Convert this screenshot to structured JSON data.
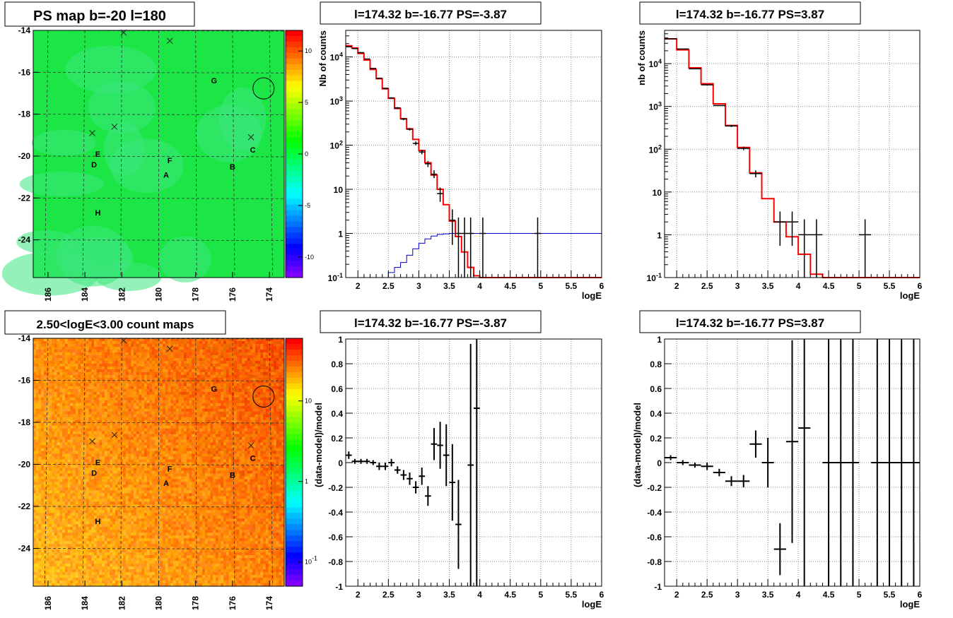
{
  "chart_data": [
    {
      "type": "heatmap",
      "title": "PS map b=-20 l=180",
      "x_range": [
        186.8,
        173.2
      ],
      "y_range": [
        -25.8,
        -14.0
      ],
      "x_ticks": [
        "186",
        "184",
        "182",
        "180",
        "178",
        "176",
        "174"
      ],
      "y_ticks": [
        "-14",
        "-16",
        "-18",
        "-20",
        "-22",
        "-24"
      ],
      "colorbar": {
        "scale": "linear",
        "min": -12,
        "max": 12,
        "ticks": [
          "10",
          "5",
          "0",
          "-5",
          "-10"
        ]
      },
      "colors": {
        "background": "#1be646",
        "patch": "#3ce87e"
      },
      "sources": [
        {
          "label": "A",
          "l": 179.6,
          "b": -20.9
        },
        {
          "label": "B",
          "l": 176.0,
          "b": -20.5
        },
        {
          "label": "C",
          "l": 174.9,
          "b": -19.7
        },
        {
          "label": "D",
          "l": 183.5,
          "b": -20.4
        },
        {
          "label": "E",
          "l": 183.3,
          "b": -19.9
        },
        {
          "label": "F",
          "l": 179.4,
          "b": -20.2
        },
        {
          "label": "G",
          "l": 177.0,
          "b": -16.4
        },
        {
          "label": "H",
          "l": 183.3,
          "b": -22.7
        }
      ],
      "crosses": [
        {
          "l": 181.9,
          "b": -14.1
        },
        {
          "l": 179.4,
          "b": -14.5
        },
        {
          "l": 183.6,
          "b": -18.9
        },
        {
          "l": 182.4,
          "b": -18.6
        },
        {
          "l": 175.0,
          "b": -19.1
        }
      ],
      "circle": {
        "l": 174.32,
        "b": -16.77
      }
    },
    {
      "type": "histogram",
      "title": "l=174.32 b=-16.77 PS=-3.87",
      "xlabel": "logE",
      "ylabel": "Nb of counts",
      "xlim": [
        1.8,
        6.0
      ],
      "ylim": [
        0.1,
        40000
      ],
      "yscale": "log",
      "x_ticks": [
        "2",
        "2.5",
        "3",
        "3.5",
        "4",
        "4.5",
        "5",
        "5.5",
        "6"
      ],
      "y_ticks": [
        "10^{-1}",
        "1",
        "10",
        "10^{2}",
        "10^{3}",
        "10^{4}"
      ],
      "bin_width": 0.1,
      "model": {
        "color": "#ff0000",
        "edges_start": 1.8,
        "values": [
          18000,
          16000,
          12000,
          8500,
          5200,
          3200,
          1900,
          1150,
          680,
          400,
          235,
          135,
          76,
          40,
          21,
          10,
          4.5,
          1.9,
          0.85,
          0.38,
          0.17,
          0.11,
          0.1,
          0.1,
          0.1,
          0.1,
          0.1,
          0.1,
          0.1,
          0.1,
          0.1,
          0.1,
          0.1,
          0.1,
          0.1,
          0.1,
          0.1,
          0.1,
          0.1,
          0.1,
          0.1,
          0.1
        ]
      },
      "ps_model": {
        "color": "#0000cc",
        "edges_start": 2.4,
        "values": [
          0.1,
          0.13,
          0.17,
          0.22,
          0.32,
          0.45,
          0.6,
          0.75,
          0.87,
          0.95,
          0.98,
          1.0,
          1.0,
          1.0,
          1.0,
          1.0,
          1.0,
          1.0,
          1.0,
          1.0,
          1.0,
          1.0,
          1.0,
          1.0,
          1.0,
          1.0,
          1.0,
          1.0,
          1.0,
          1.0,
          1.0,
          1.0,
          1.0,
          1.0,
          1.0,
          1.0
        ]
      },
      "data": [
        {
          "x": 1.85,
          "y": 17000,
          "lo": 16800,
          "hi": 17200
        },
        {
          "x": 1.95,
          "y": 15500,
          "lo": 15300,
          "hi": 15700
        },
        {
          "x": 2.05,
          "y": 12500,
          "lo": 12300,
          "hi": 12700
        },
        {
          "x": 2.15,
          "y": 9000,
          "lo": 8800,
          "hi": 9200
        },
        {
          "x": 2.25,
          "y": 5500,
          "lo": 5400,
          "hi": 5650
        },
        {
          "x": 2.35,
          "y": 3300,
          "lo": 3200,
          "hi": 3400
        },
        {
          "x": 2.45,
          "y": 1950,
          "lo": 1900,
          "hi": 2000
        },
        {
          "x": 2.55,
          "y": 1180,
          "lo": 1140,
          "hi": 1220
        },
        {
          "x": 2.65,
          "y": 700,
          "lo": 670,
          "hi": 730
        },
        {
          "x": 2.75,
          "y": 390,
          "lo": 370,
          "hi": 410
        },
        {
          "x": 2.85,
          "y": 230,
          "lo": 215,
          "hi": 245
        },
        {
          "x": 2.95,
          "y": 110,
          "lo": 100,
          "hi": 121
        },
        {
          "x": 3.05,
          "y": 70,
          "lo": 62,
          "hi": 78
        },
        {
          "x": 3.15,
          "y": 38,
          "lo": 32,
          "hi": 44
        },
        {
          "x": 3.25,
          "y": 22,
          "lo": 18,
          "hi": 27
        },
        {
          "x": 3.35,
          "y": 8,
          "lo": 5.2,
          "hi": 11
        },
        {
          "x": 3.55,
          "y": 2,
          "lo": 0.55,
          "hi": 3.5
        },
        {
          "x": 3.65,
          "y": 1,
          "lo": 0.1,
          "hi": 2.3
        },
        {
          "x": 3.75,
          "y": 1,
          "lo": 0.1,
          "hi": 2.3
        },
        {
          "x": 3.85,
          "y": 1,
          "lo": 0.1,
          "hi": 2.3
        },
        {
          "x": 4.05,
          "y": 1,
          "lo": 0.1,
          "hi": 2.3
        },
        {
          "x": 4.95,
          "y": 1,
          "lo": 0.1,
          "hi": 2.3
        }
      ]
    },
    {
      "type": "histogram",
      "title": "l=174.32 b=-16.77 PS=3.87",
      "xlabel": "logE",
      "ylabel": "nb of counts",
      "xlim": [
        1.8,
        6.0
      ],
      "ylim": [
        0.1,
        60000
      ],
      "yscale": "log",
      "x_ticks": [
        "2",
        "2.5",
        "3",
        "3.5",
        "4",
        "4.5",
        "5",
        "5.5",
        "6"
      ],
      "y_ticks": [
        "10^{-1}",
        "1",
        "10",
        "10^{2}",
        "10^{3}",
        "10^{4}"
      ],
      "bin_width": 0.2,
      "model": {
        "color": "#ff0000",
        "edges_start": 1.8,
        "values": [
          38000,
          21000,
          8000,
          3400,
          1150,
          360,
          110,
          28,
          7,
          2,
          0.9,
          0.35,
          0.12,
          0.1,
          0.1,
          0.1,
          0.1,
          0.1,
          0.1,
          0.1,
          0.1
        ]
      },
      "data": [
        {
          "x": 1.9,
          "y": 38000,
          "lo": 37600,
          "hi": 38400
        },
        {
          "x": 2.1,
          "y": 22000,
          "lo": 21700,
          "hi": 22300
        },
        {
          "x": 2.3,
          "y": 7600,
          "lo": 7450,
          "hi": 7750
        },
        {
          "x": 2.5,
          "y": 3200,
          "lo": 3100,
          "hi": 3300
        },
        {
          "x": 2.7,
          "y": 1050,
          "lo": 1020,
          "hi": 1080
        },
        {
          "x": 2.9,
          "y": 350,
          "lo": 330,
          "hi": 370
        },
        {
          "x": 3.1,
          "y": 105,
          "lo": 95,
          "hi": 115
        },
        {
          "x": 3.3,
          "y": 27,
          "lo": 22,
          "hi": 32
        },
        {
          "x": 3.7,
          "y": 2,
          "lo": 0.55,
          "hi": 3.5
        },
        {
          "x": 3.9,
          "y": 2,
          "lo": 0.55,
          "hi": 3.5
        },
        {
          "x": 4.1,
          "y": 1,
          "lo": 0.1,
          "hi": 2.3
        },
        {
          "x": 4.3,
          "y": 1,
          "lo": 0.1,
          "hi": 2.3
        },
        {
          "x": 5.1,
          "y": 1,
          "lo": 0.1,
          "hi": 2.3
        }
      ]
    },
    {
      "type": "heatmap",
      "title": "2.50<logE<3.00 count maps",
      "x_range": [
        186.8,
        173.2
      ],
      "y_range": [
        -25.8,
        -14.0
      ],
      "x_ticks": [
        "186",
        "184",
        "182",
        "180",
        "178",
        "176",
        "174"
      ],
      "y_ticks": [
        "-14",
        "-16",
        "-18",
        "-20",
        "-22",
        "-24"
      ],
      "colorbar": {
        "scale": "log",
        "min": 0.05,
        "max": 60,
        "ticks": [
          "10",
          "1",
          "10^{-1}"
        ]
      },
      "sources": [
        {
          "label": "A",
          "l": 179.6,
          "b": -20.9
        },
        {
          "label": "B",
          "l": 176.0,
          "b": -20.5
        },
        {
          "label": "C",
          "l": 174.9,
          "b": -19.7
        },
        {
          "label": "D",
          "l": 183.5,
          "b": -20.4
        },
        {
          "label": "E",
          "l": 183.3,
          "b": -19.9
        },
        {
          "label": "F",
          "l": 179.4,
          "b": -20.2
        },
        {
          "label": "G",
          "l": 177.0,
          "b": -16.4
        },
        {
          "label": "H",
          "l": 183.3,
          "b": -22.7
        }
      ],
      "crosses": [
        {
          "l": 181.9,
          "b": -14.1
        },
        {
          "l": 179.4,
          "b": -14.5
        },
        {
          "l": 183.6,
          "b": -18.9
        },
        {
          "l": 182.4,
          "b": -18.6
        },
        {
          "l": 175.0,
          "b": -19.1
        }
      ],
      "circle": {
        "l": 174.32,
        "b": -16.77
      }
    },
    {
      "type": "scatter",
      "title": "l=174.32 b=-16.77 PS=-3.87",
      "xlabel": "logE",
      "ylabel": "(data-model)/model",
      "xlim": [
        1.8,
        6.0
      ],
      "ylim": [
        -1.0,
        1.0
      ],
      "x_ticks": [
        "2",
        "2.5",
        "3",
        "3.5",
        "4",
        "4.5",
        "5",
        "5.5",
        "6"
      ],
      "y_ticks": [
        "-1",
        "-0.8",
        "-0.6",
        "-0.4",
        "-0.2",
        "0",
        "0.2",
        "0.4",
        "0.6",
        "0.8",
        "1"
      ],
      "bin_width": 0.1,
      "data": [
        {
          "x": 1.85,
          "y": 0.06,
          "err": 0.03
        },
        {
          "x": 1.95,
          "y": 0.01,
          "err": 0.02
        },
        {
          "x": 2.05,
          "y": 0.01,
          "err": 0.02
        },
        {
          "x": 2.15,
          "y": 0.01,
          "err": 0.02
        },
        {
          "x": 2.25,
          "y": 0.0,
          "err": 0.02
        },
        {
          "x": 2.35,
          "y": -0.03,
          "err": 0.03
        },
        {
          "x": 2.45,
          "y": -0.03,
          "err": 0.03
        },
        {
          "x": 2.55,
          "y": 0.0,
          "err": 0.03
        },
        {
          "x": 2.65,
          "y": -0.06,
          "err": 0.03
        },
        {
          "x": 2.75,
          "y": -0.1,
          "err": 0.04
        },
        {
          "x": 2.85,
          "y": -0.13,
          "err": 0.05
        },
        {
          "x": 2.95,
          "y": -0.2,
          "err": 0.05
        },
        {
          "x": 3.05,
          "y": -0.11,
          "err": 0.07
        },
        {
          "x": 3.15,
          "y": -0.27,
          "err": 0.08
        },
        {
          "x": 3.25,
          "y": 0.15,
          "err": 0.13
        },
        {
          "x": 3.35,
          "y": 0.14,
          "err": 0.19
        },
        {
          "x": 3.45,
          "y": 0.06,
          "err": 0.25
        },
        {
          "x": 3.55,
          "y": -0.16,
          "err": 0.31
        },
        {
          "x": 3.65,
          "y": -0.5,
          "err": 0.36
        },
        {
          "x": 3.85,
          "y": -0.02,
          "err": 0.98
        },
        {
          "x": 3.95,
          "y": 0.44,
          "err": 1.5
        }
      ]
    },
    {
      "type": "scatter",
      "title": "l=174.32 b=-16.77 PS=3.87",
      "xlabel": "logE",
      "ylabel": "(data-model)/model",
      "xlim": [
        1.8,
        6.0
      ],
      "ylim": [
        -1.0,
        1.0
      ],
      "x_ticks": [
        "2",
        "2.5",
        "3",
        "3.5",
        "4",
        "4.5",
        "5",
        "5.5",
        "6"
      ],
      "y_ticks": [
        "-1",
        "-0.8",
        "-0.6",
        "-0.4",
        "-0.2",
        "0",
        "0.2",
        "0.4",
        "0.6",
        "0.8",
        "1"
      ],
      "bin_width": 0.2,
      "data": [
        {
          "x": 1.9,
          "y": 0.04,
          "err": 0.02
        },
        {
          "x": 2.1,
          "y": 0.0,
          "err": 0.02
        },
        {
          "x": 2.3,
          "y": -0.02,
          "err": 0.02
        },
        {
          "x": 2.5,
          "y": -0.03,
          "err": 0.03
        },
        {
          "x": 2.7,
          "y": -0.08,
          "err": 0.03
        },
        {
          "x": 2.9,
          "y": -0.15,
          "err": 0.04
        },
        {
          "x": 3.1,
          "y": -0.15,
          "err": 0.05
        },
        {
          "x": 3.3,
          "y": 0.15,
          "err": 0.11
        },
        {
          "x": 3.5,
          "y": 0.0,
          "err": 0.2
        },
        {
          "x": 3.7,
          "y": -0.7,
          "err": 0.21
        },
        {
          "x": 3.9,
          "y": 0.17,
          "err": 0.82
        },
        {
          "x": 4.1,
          "y": 0.28,
          "err": 1.3
        },
        {
          "x": 4.5,
          "y": 0.0,
          "err": 1.5
        },
        {
          "x": 4.7,
          "y": 0.0,
          "err": 1.5
        },
        {
          "x": 4.9,
          "y": 0.0,
          "err": 1.5
        },
        {
          "x": 5.3,
          "y": 0.0,
          "err": 1.5
        },
        {
          "x": 5.5,
          "y": 0.0,
          "err": 1.5
        },
        {
          "x": 5.7,
          "y": 0.0,
          "err": 1.5
        },
        {
          "x": 5.9,
          "y": 0.0,
          "err": 1.5
        }
      ]
    }
  ]
}
